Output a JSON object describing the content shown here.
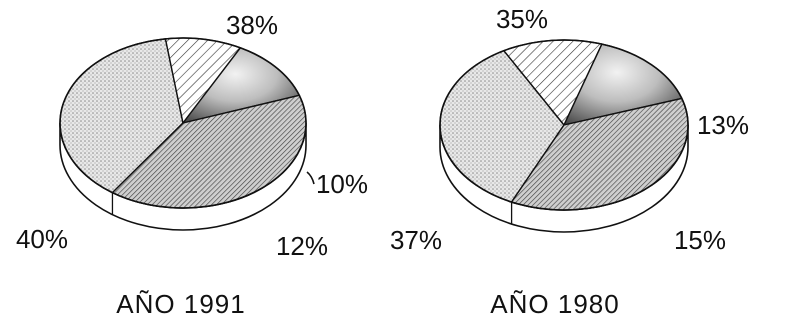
{
  "chart_data": [
    {
      "type": "pie",
      "title": "AÑO 1991",
      "slices": [
        {
          "label": "38%",
          "value": 38,
          "pattern": "dots"
        },
        {
          "label": "10%",
          "value": 10,
          "pattern": "hatch-light"
        },
        {
          "label": "12%",
          "value": 12,
          "pattern": "shaded-gradient"
        },
        {
          "label": "40%",
          "value": 40,
          "pattern": "hatch-dense"
        }
      ]
    },
    {
      "type": "pie",
      "title": "AÑO 1980",
      "slices": [
        {
          "label": "35%",
          "value": 35,
          "pattern": "dots"
        },
        {
          "label": "13%",
          "value": 13,
          "pattern": "hatch-light"
        },
        {
          "label": "15%",
          "value": 15,
          "pattern": "shaded-gradient"
        },
        {
          "label": "37%",
          "value": 37,
          "pattern": "hatch-dense"
        }
      ]
    }
  ],
  "colors": {
    "ink": "#111111",
    "dots": "#bdbdbd",
    "hatch": "#333333",
    "shade": "#555555",
    "background": "#ffffff"
  }
}
